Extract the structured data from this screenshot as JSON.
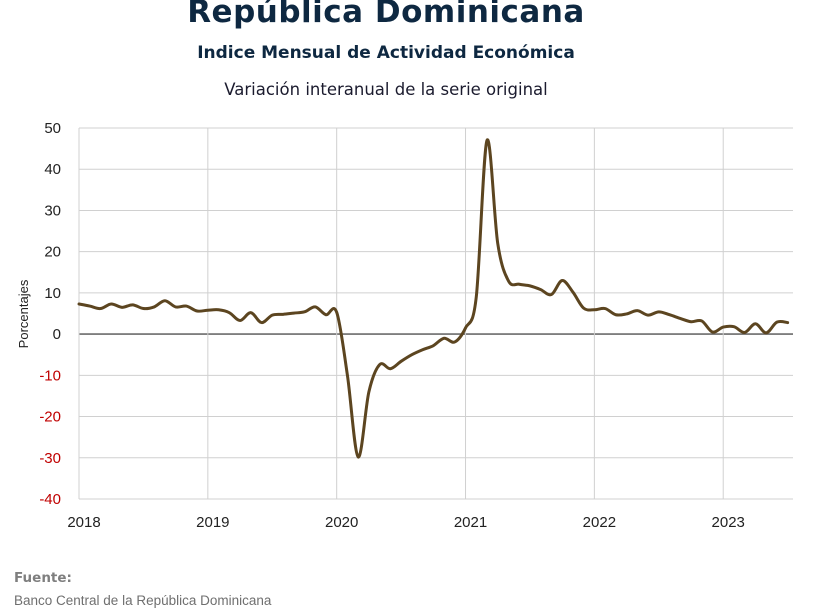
{
  "header": {
    "title": "República Dominicana",
    "subtitle": "Indice Mensual de  Actividad Económica",
    "subtitle2": "Variación interanual de la serie original"
  },
  "source": {
    "label": "Fuente:",
    "text": "Banco Central de la República Dominicana"
  },
  "colors": {
    "line": "#5c4520",
    "grid": "#d0d0d0",
    "zero_line": "#6b6b6b",
    "negative_tick": "#c00000"
  },
  "chart_data": {
    "type": "line",
    "title": "Variación interanual de la serie original",
    "xlabel": "",
    "ylabel": "Porcentajes",
    "ylim": [
      -40,
      50
    ],
    "yticks": [
      50,
      40,
      30,
      20,
      10,
      0,
      -10,
      -20,
      -30,
      -40
    ],
    "xlim": [
      "2018-01",
      "2023-07"
    ],
    "xticks": [
      "2018",
      "2019",
      "2020",
      "2021",
      "2022",
      "2023"
    ],
    "grid": true,
    "legend": "none",
    "series": [
      {
        "x": [
          "2018-01",
          "2018-02",
          "2018-03",
          "2018-04",
          "2018-05",
          "2018-06",
          "2018-07",
          "2018-08",
          "2018-09",
          "2018-10",
          "2018-11",
          "2018-12",
          "2019-01",
          "2019-02",
          "2019-03",
          "2019-04",
          "2019-05",
          "2019-06",
          "2019-07",
          "2019-08",
          "2019-09",
          "2019-10",
          "2019-11",
          "2019-12",
          "2020-01",
          "2020-02",
          "2020-03",
          "2020-04",
          "2020-05",
          "2020-06",
          "2020-07",
          "2020-08",
          "2020-09",
          "2020-10",
          "2020-11",
          "2020-12",
          "2021-01",
          "2021-02",
          "2021-03",
          "2021-04",
          "2021-05",
          "2021-06",
          "2021-07",
          "2021-08",
          "2021-09",
          "2021-10",
          "2021-11",
          "2021-12",
          "2022-01",
          "2022-02",
          "2022-03",
          "2022-04",
          "2022-05",
          "2022-06",
          "2022-07",
          "2022-08",
          "2022-09",
          "2022-10",
          "2022-11",
          "2022-12",
          "2023-01",
          "2023-02",
          "2023-03",
          "2023-04",
          "2023-05",
          "2023-06",
          "2023-07"
        ],
        "values": [
          7.3,
          6.8,
          6.2,
          7.3,
          6.5,
          7.1,
          6.2,
          6.6,
          8.1,
          6.6,
          6.8,
          5.6,
          5.8,
          5.9,
          5.2,
          3.3,
          5.2,
          2.8,
          4.6,
          4.8,
          5.1,
          5.4,
          6.6,
          4.7,
          5.3,
          -10.0,
          -29.8,
          -14.0,
          -7.4,
          -8.4,
          -6.6,
          -5.0,
          -3.8,
          -2.8,
          -1.0,
          -1.9,
          1.5,
          9.0,
          47.0,
          22.0,
          12.9,
          12.1,
          11.7,
          10.8,
          9.6,
          13.0,
          10.2,
          6.3,
          5.9,
          6.2,
          4.7,
          4.9,
          5.7,
          4.6,
          5.4,
          4.7,
          3.8,
          3.0,
          3.2,
          0.5,
          1.7,
          1.8,
          0.4,
          2.5,
          0.3,
          2.9,
          2.8
        ]
      }
    ]
  }
}
